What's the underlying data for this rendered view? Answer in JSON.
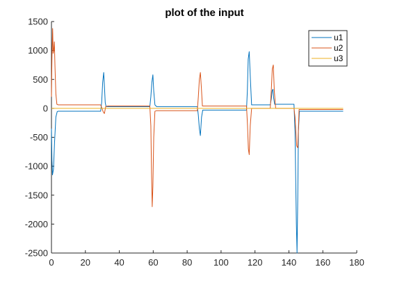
{
  "chart_data": {
    "type": "line",
    "title": "plot of the input",
    "xlabel": "",
    "ylabel": "",
    "xlim": [
      0,
      180
    ],
    "ylim": [
      -2500,
      1500
    ],
    "xticks": [
      0,
      20,
      40,
      60,
      80,
      100,
      120,
      140,
      160,
      180
    ],
    "yticks": [
      -2500,
      -2000,
      -1500,
      -1000,
      -500,
      0,
      500,
      1000,
      1500
    ],
    "grid": false,
    "legend_position": "top-right",
    "series": [
      {
        "name": "u1",
        "color": "#0072bd",
        "x": [
          0,
          0.3,
          0.6,
          1.2,
          1.8,
          2.6,
          3.4,
          4.0,
          29.0,
          29.6,
          30.2,
          30.8,
          31.2,
          31.7,
          32.2,
          33.0,
          58.0,
          58.6,
          59.2,
          59.8,
          60.3,
          61.0,
          62.0,
          86.0,
          86.6,
          87.2,
          87.8,
          88.5,
          89.2,
          115.0,
          115.5,
          116.0,
          116.6,
          117.3,
          118.0,
          129.0,
          129.6,
          130.1,
          130.6,
          131.0,
          131.6,
          132.2,
          143.0,
          143.6,
          144.0,
          144.4,
          144.8,
          145.2,
          145.6,
          146.2,
          172.0
        ],
        "y": [
          -350,
          -900,
          -1150,
          -1050,
          -600,
          -150,
          -55,
          -50,
          -50,
          100,
          450,
          620,
          400,
          100,
          30,
          30,
          30,
          200,
          450,
          580,
          300,
          60,
          30,
          30,
          -120,
          -350,
          -470,
          -150,
          -30,
          -30,
          300,
          850,
          980,
          500,
          60,
          60,
          160,
          300,
          330,
          180,
          70,
          70,
          70,
          -400,
          -1200,
          -2000,
          -2500,
          -1600,
          -400,
          -50,
          -50
        ]
      },
      {
        "name": "u2",
        "color": "#d95319",
        "x": [
          0,
          0.3,
          0.7,
          1.0,
          1.3,
          1.7,
          2.1,
          2.6,
          3.2,
          4.0,
          29.0,
          29.8,
          30.5,
          31.2,
          32.0,
          33.0,
          58.0,
          58.6,
          59.0,
          59.4,
          59.8,
          60.3,
          61.0,
          62.0,
          86.0,
          86.6,
          87.2,
          87.8,
          88.4,
          89.0,
          115.0,
          115.6,
          116.1,
          116.6,
          117.2,
          118.0,
          129.0,
          129.6,
          130.2,
          130.8,
          131.4,
          132.2,
          143.0,
          143.6,
          144.1,
          144.6,
          145.2,
          146.0,
          172.0
        ],
        "y": [
          200,
          900,
          1380,
          950,
          1000,
          1150,
          700,
          250,
          70,
          60,
          60,
          0,
          -60,
          -90,
          30,
          40,
          40,
          -300,
          -1100,
          -1700,
          -1350,
          -500,
          -50,
          -40,
          -40,
          200,
          500,
          620,
          350,
          40,
          40,
          -300,
          -700,
          -800,
          -300,
          0,
          0,
          300,
          680,
          750,
          300,
          0,
          0,
          -150,
          -400,
          -650,
          -680,
          -20,
          -20
        ]
      },
      {
        "name": "u3",
        "color": "#edb120",
        "x": [
          0,
          172
        ],
        "y": [
          0,
          0
        ]
      }
    ]
  }
}
